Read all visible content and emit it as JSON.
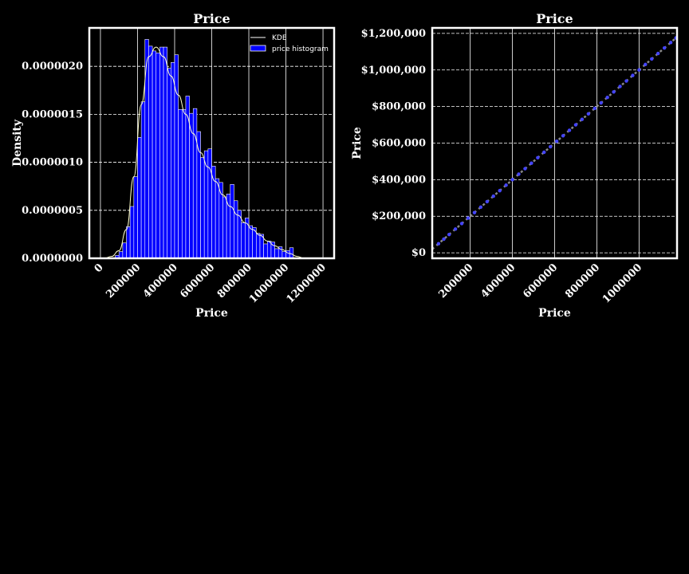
{
  "colors": {
    "background": "#000000",
    "foreground": "#ffffff",
    "bar": "#0000ff",
    "kde": "#ffffcc",
    "points": "#4444ff",
    "line": "#888888"
  },
  "chart_data": [
    {
      "type": "bar",
      "title": "Price",
      "xlabel": "Price",
      "ylabel": "Density",
      "xlim": [
        -60000,
        1260000
      ],
      "ylim": [
        0,
        2.4e-06
      ],
      "xticks": [
        0,
        200000,
        400000,
        600000,
        800000,
        1000000,
        1200000
      ],
      "xtick_labels": [
        "0",
        "200000",
        "400000",
        "600000",
        "800000",
        "1000000",
        "1200000"
      ],
      "yticks": [
        0,
        5e-07,
        1e-06,
        1.5e-06,
        2e-06
      ],
      "ytick_labels": [
        "0.0000000",
        "0.0000005",
        "0.0000010",
        "0.0000015",
        "0.0000020"
      ],
      "grid": true,
      "legend_position": "top-right",
      "legend": [
        "KDE",
        "price histogram"
      ],
      "bin_width": 20000,
      "bin_start": 80000,
      "histogram_values": [
        3e-08,
        7e-08,
        1.6e-07,
        3.3e-07,
        5.4e-07,
        8.5e-07,
        1.26e-06,
        1.63e-06,
        2.28e-06,
        2.21e-06,
        2.16e-06,
        2.14e-06,
        2.2e-06,
        2.2e-06,
        1.98e-06,
        2.04e-06,
        2.12e-06,
        1.55e-06,
        1.55e-06,
        1.69e-06,
        1.51e-06,
        1.56e-06,
        1.32e-06,
        1.05e-06,
        1.12e-06,
        1.14e-06,
        9.6e-07,
        8.3e-07,
        7.9e-07,
        6.4e-07,
        6.7e-07,
        7.7e-07,
        6e-07,
        5e-07,
        3.7e-07,
        4.2e-07,
        3.4e-07,
        3.2e-07,
        2.6e-07,
        2.5e-07,
        1.5e-07,
        1.8e-07,
        1.7e-07,
        1e-07,
        1.2e-07,
        7e-08,
        8e-08,
        1.1e-07
      ],
      "kde": {
        "x": [
          20000,
          60000,
          100000,
          140000,
          180000,
          220000,
          260000,
          300000,
          340000,
          380000,
          420000,
          460000,
          500000,
          540000,
          580000,
          620000,
          660000,
          700000,
          740000,
          780000,
          820000,
          860000,
          900000,
          940000,
          980000,
          1020000,
          1060000,
          1100000
        ],
        "y": [
          0.0,
          2e-08,
          8e-08,
          3e-07,
          8.5e-07,
          1.6e-06,
          2.1e-06,
          2.2e-06,
          2.1e-06,
          1.9e-06,
          1.7e-06,
          1.5e-06,
          1.3e-06,
          1.1e-06,
          9.5e-07,
          8e-07,
          6.6e-07,
          5.4e-07,
          4.5e-07,
          3.7e-07,
          3e-07,
          2.4e-07,
          1.8e-07,
          1.3e-07,
          9e-08,
          5e-08,
          2e-08,
          0.0
        ]
      }
    },
    {
      "type": "scatter",
      "title": "Price",
      "xlabel": "Price",
      "ylabel": "Price",
      "xlim": [
        20000,
        1180000
      ],
      "ylim": [
        -30000,
        1230000
      ],
      "xticks": [
        200000,
        400000,
        600000,
        800000,
        1000000
      ],
      "xtick_labels": [
        "200000",
        "400000",
        "600000",
        "800000",
        "1000000"
      ],
      "yticks": [
        0,
        200000,
        400000,
        600000,
        800000,
        1000000,
        1200000
      ],
      "ytick_labels": [
        "$0",
        "$200,000",
        "$400,000",
        "$600,000",
        "$800,000",
        "$1,000,000",
        "$1,200,000"
      ],
      "grid": true,
      "x": [
        50000,
        75000,
        100000,
        130000,
        160000,
        190000,
        220000,
        250000,
        280000,
        310000,
        340000,
        370000,
        400000,
        430000,
        460000,
        490000,
        520000,
        550000,
        580000,
        610000,
        640000,
        670000,
        700000,
        730000,
        760000,
        790000,
        820000,
        850000,
        880000,
        910000,
        940000,
        970000,
        1000000,
        1030000,
        1060000,
        1090000,
        1120000,
        1150000,
        1175000
      ],
      "y": [
        50000,
        75000,
        100000,
        130000,
        160000,
        190000,
        220000,
        250000,
        280000,
        310000,
        340000,
        370000,
        400000,
        430000,
        460000,
        490000,
        520000,
        550000,
        580000,
        610000,
        640000,
        670000,
        700000,
        730000,
        760000,
        790000,
        820000,
        850000,
        880000,
        910000,
        940000,
        970000,
        1000000,
        1030000,
        1060000,
        1090000,
        1120000,
        1150000,
        1175000
      ]
    }
  ]
}
